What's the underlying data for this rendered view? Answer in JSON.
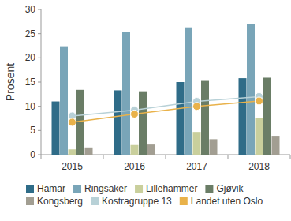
{
  "chart_data": {
    "type": "bar",
    "y_label": "Prosent",
    "categories": [
      "2015",
      "2016",
      "2017",
      "2018"
    ],
    "ylim": [
      0,
      30
    ],
    "yticks": [
      0,
      5,
      10,
      15,
      20,
      25,
      30
    ],
    "grid": false,
    "legend": "bottom",
    "series": [
      {
        "name": "Hamar",
        "color": "#2f6c88",
        "values": [
          11,
          13.3,
          15,
          15.8
        ]
      },
      {
        "name": "Ringsaker",
        "color": "#79a5b8",
        "values": [
          22.4,
          25.3,
          26.3,
          27
        ]
      },
      {
        "name": "Lillehammer",
        "color": "#c9cf9c",
        "values": [
          1.1,
          2,
          4.7,
          7.5
        ]
      },
      {
        "name": "Gjøvik",
        "color": "#6a7d66",
        "values": [
          13.4,
          13.1,
          15.4,
          15.9
        ]
      },
      {
        "name": "Kongsberg",
        "color": "#a29e92",
        "values": [
          1.5,
          2.1,
          3.2,
          3.9
        ]
      },
      {
        "name": "Kostragruppe 13",
        "color": "#b8d1d7",
        "type": "line",
        "marker": "circle",
        "line_style": "solid",
        "values": [
          8,
          9.2,
          11,
          12
        ]
      },
      {
        "name": "Landet uten Oslo",
        "color": "#e9b24a",
        "type": "line",
        "marker": "circle",
        "line_style": "solid",
        "values": [
          6.7,
          8.4,
          10,
          11.1
        ]
      }
    ]
  }
}
